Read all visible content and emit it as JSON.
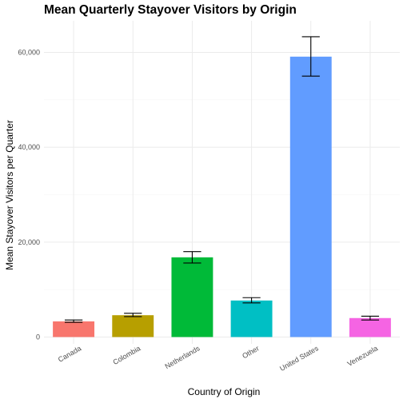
{
  "chart_data": {
    "type": "bar",
    "title": "Mean Quarterly Stayover Visitors by Origin",
    "xlabel": "Country of Origin",
    "ylabel": "Mean Stayover Visitors per Quarter",
    "categories": [
      "Canada",
      "Colombia",
      "Netherlands",
      "Other",
      "United States",
      "Venezuela"
    ],
    "values": [
      3300,
      4600,
      16800,
      7700,
      59100,
      4000
    ],
    "error_low": [
      3100,
      4300,
      15600,
      7200,
      55000,
      3600
    ],
    "error_high": [
      3600,
      5000,
      18000,
      8300,
      63300,
      4400
    ],
    "colors": [
      "#F8766D",
      "#B79F00",
      "#00BA38",
      "#00BFC4",
      "#619CFF",
      "#F564E3"
    ],
    "ylim": [
      0,
      66000
    ],
    "yticks": [
      0,
      20000,
      40000,
      60000
    ],
    "ytick_labels": [
      "0",
      "20,000",
      "40,000",
      "60,000"
    ],
    "grid": true,
    "legend": "none"
  }
}
